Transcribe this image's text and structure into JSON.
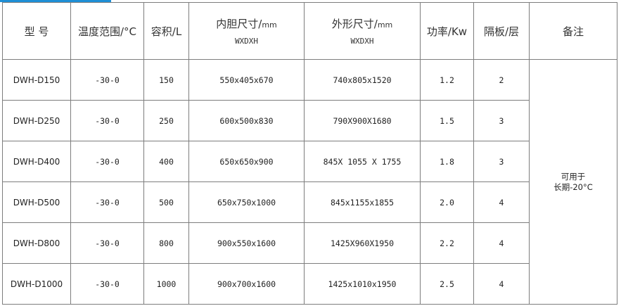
{
  "header": {
    "model": "型 号",
    "temp": "温度范围/°C",
    "volume": "容积/L",
    "inner": "内胆尺寸/",
    "inner_unit": "mm",
    "inner_sub": "WXDXH",
    "outer": "外形尺寸/",
    "outer_unit": "mm",
    "outer_sub": "WXDXH",
    "power": "功率/Kw",
    "shelves": "隔板/层",
    "note": "备注"
  },
  "rows": [
    {
      "model": "DWH-D150",
      "temp": "-30-0",
      "volume": "150",
      "inner": "550x405x670",
      "outer": "740x805x1520",
      "power": "1.2",
      "shelves": "2"
    },
    {
      "model": "DWH-D250",
      "temp": "-30-0",
      "volume": "250",
      "inner": "600x500x830",
      "outer": "790X900X1680",
      "power": "1.5",
      "shelves": "3"
    },
    {
      "model": "DWH-D400",
      "temp": "-30-0",
      "volume": "400",
      "inner": "650x650x900",
      "outer": "845X 1055 X 1755",
      "power": "1.8",
      "shelves": "3"
    },
    {
      "model": "DWH-D500",
      "temp": "-30-0",
      "volume": "500",
      "inner": "650x750x1000",
      "outer": "845x1155x1855",
      "power": "2.0",
      "shelves": "4"
    },
    {
      "model": "DWH-D800",
      "temp": "-30-0",
      "volume": "800",
      "inner": "900x550x1600",
      "outer": "1425X960X1950",
      "power": "2.2",
      "shelves": "4"
    },
    {
      "model": "DWH-D1000",
      "temp": "-30-0",
      "volume": "1000",
      "inner": "900x700x1600",
      "outer": "1425x1010x1950",
      "power": "2.5",
      "shelves": "4"
    }
  ],
  "note": {
    "line1": "可用于",
    "line2": "长期-20°C"
  },
  "colors": {
    "accent": "#1e8fd6",
    "border": "#7d7d7d"
  }
}
